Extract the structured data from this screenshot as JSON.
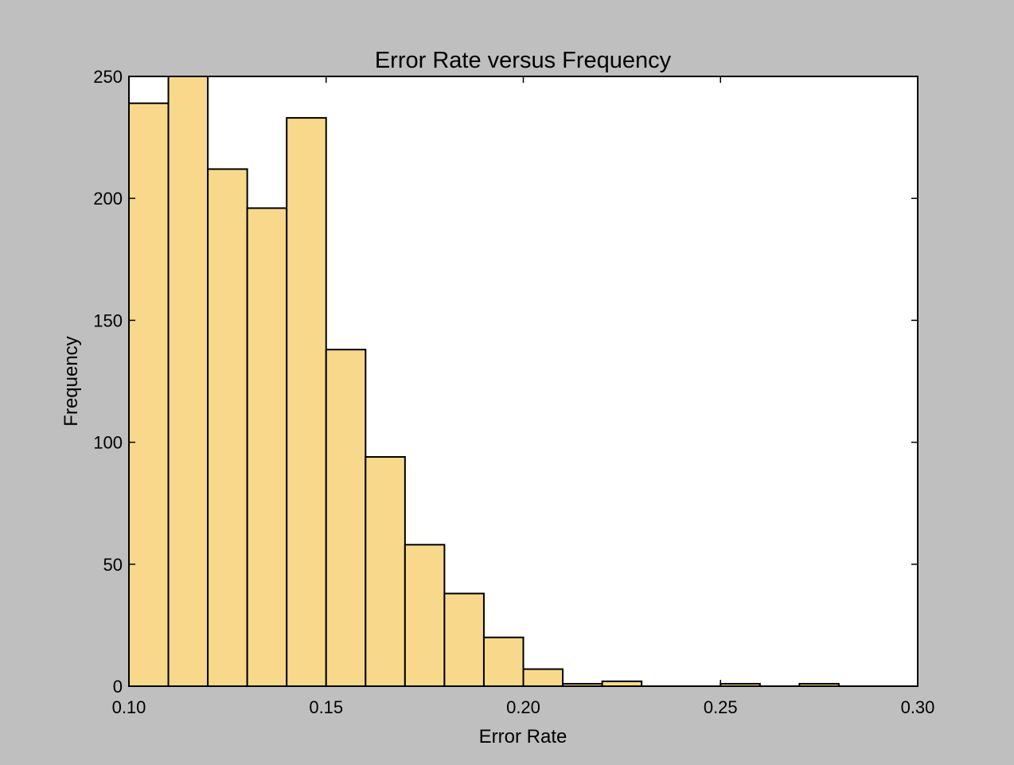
{
  "chart_data": {
    "type": "bar",
    "title": "Error Rate versus Frequency",
    "xlabel": "Error Rate",
    "ylabel": "Frequency",
    "xlim": [
      0.1,
      0.3
    ],
    "ylim": [
      0,
      250
    ],
    "x_ticks": [
      "0.10",
      "0.15",
      "0.20",
      "0.25",
      "0.30"
    ],
    "y_ticks": [
      "0",
      "50",
      "100",
      "150",
      "200",
      "250"
    ],
    "bin_width": 0.01,
    "bins": [
      {
        "start": 0.1,
        "end": 0.11,
        "value": 239
      },
      {
        "start": 0.11,
        "end": 0.12,
        "value": 250
      },
      {
        "start": 0.12,
        "end": 0.13,
        "value": 212
      },
      {
        "start": 0.13,
        "end": 0.14,
        "value": 196
      },
      {
        "start": 0.14,
        "end": 0.15,
        "value": 233
      },
      {
        "start": 0.15,
        "end": 0.16,
        "value": 138
      },
      {
        "start": 0.16,
        "end": 0.17,
        "value": 94
      },
      {
        "start": 0.17,
        "end": 0.18,
        "value": 58
      },
      {
        "start": 0.18,
        "end": 0.19,
        "value": 38
      },
      {
        "start": 0.19,
        "end": 0.2,
        "value": 20
      },
      {
        "start": 0.2,
        "end": 0.21,
        "value": 7
      },
      {
        "start": 0.21,
        "end": 0.22,
        "value": 1
      },
      {
        "start": 0.22,
        "end": 0.23,
        "value": 2
      },
      {
        "start": 0.23,
        "end": 0.24,
        "value": 0
      },
      {
        "start": 0.24,
        "end": 0.25,
        "value": 0
      },
      {
        "start": 0.25,
        "end": 0.26,
        "value": 1
      },
      {
        "start": 0.26,
        "end": 0.27,
        "value": 0
      },
      {
        "start": 0.27,
        "end": 0.28,
        "value": 1
      },
      {
        "start": 0.28,
        "end": 0.29,
        "value": 0
      },
      {
        "start": 0.29,
        "end": 0.3,
        "value": 0
      }
    ],
    "bar_color": "#f8d98b",
    "edge_color": "#000000",
    "plot_background": "#ffffff",
    "figure_background": "#bfbfbf",
    "grid": false,
    "legend": "none"
  }
}
